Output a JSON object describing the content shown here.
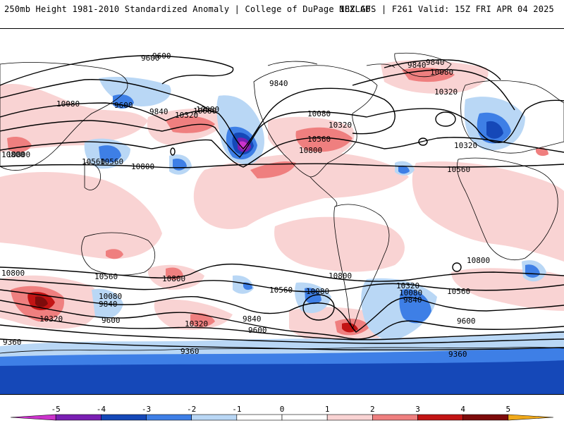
{
  "header": {
    "title": "250mb Height 1981-2010 Standardized Anomaly | College of DuPage NEXLAB",
    "valid": "18Z GFS | F261 Valid: 15Z FRI APR 04 2025"
  },
  "colors": {
    "neg5": "#cc33cc",
    "neg4": "#7a1fb3",
    "neg3": "#1548b8",
    "neg2": "#3e7fe6",
    "neg1": "#b9d7f5",
    "pos1": "#f9d3d3",
    "pos2": "#ef7f7f",
    "pos3": "#c21414",
    "pos4": "#7d0b0b",
    "pos5": "#f0a91a",
    "contour": "#000000",
    "land": "#000000"
  },
  "contour_labels": [
    "9600",
    "9840",
    "10080",
    "10320",
    "10560",
    "10800",
    "9840",
    "10080",
    "10320",
    "10080",
    "10320",
    "10560",
    "10800",
    "9600",
    "9840",
    "10080",
    "10320",
    "10560",
    "10800",
    "10800",
    "10080",
    "10320",
    "10560",
    "10080",
    "9840",
    "10800",
    "10560",
    "10800",
    "10080",
    "9840",
    "9600",
    "10320",
    "9840",
    "9600",
    "10560",
    "10800",
    "10080",
    "10320",
    "9840",
    "9600",
    "10800",
    "10560",
    "9600",
    "9360",
    "9360",
    "9360"
  ],
  "legend": {
    "ticks": [
      "-5",
      "-4",
      "-3",
      "-2",
      "-1",
      "0",
      "1",
      "2",
      "3",
      "4",
      "5"
    ]
  }
}
